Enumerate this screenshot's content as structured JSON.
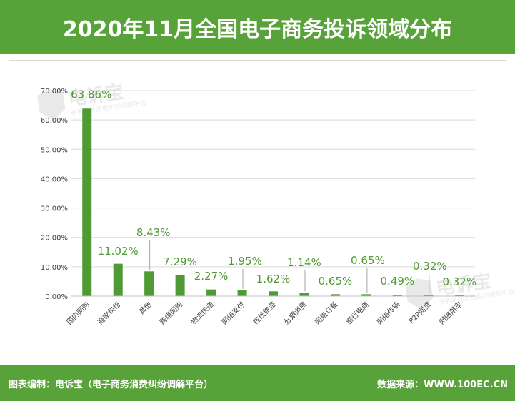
{
  "header": {
    "title": "2020年11月全国电子商务投诉领域分布"
  },
  "footer": {
    "left": "图表编制：电诉宝（电子商务消费纠纷调解平台）",
    "right": "数据来源：WWW.100EC.CN"
  },
  "watermark": {
    "brand": "电诉宝",
    "subtitle": "电子商务消费纠纷调解平台"
  },
  "colors": {
    "header_bg": "#58a23a",
    "bar": "#4f9a34",
    "label": "#4f9a34",
    "grid": "#d9d9d9"
  },
  "chart_data": {
    "type": "bar",
    "categories": [
      "国内网购",
      "商家纠纷",
      "其他",
      "跨境网购",
      "物流快递",
      "网络支付",
      "在线旅游",
      "分期消费",
      "网络订餐",
      "银行电商",
      "网络传销",
      "P2P网贷",
      "网络用车"
    ],
    "values": [
      63.86,
      11.02,
      8.43,
      7.29,
      2.27,
      1.95,
      1.62,
      1.14,
      0.65,
      0.65,
      0.49,
      0.32,
      0.32
    ],
    "data_labels": [
      "63.86%",
      "11.02%",
      "8.43%",
      "7.29%",
      "2.27%",
      "1.95%",
      "1.62%",
      "1.14%",
      "0.65%",
      "0.65%",
      "0.49%",
      "0.32%",
      "0.32%"
    ],
    "yticks": [
      "0.00%",
      "10.00%",
      "20.00%",
      "30.00%",
      "40.00%",
      "50.00%",
      "60.00%",
      "70.00%"
    ],
    "ylim": [
      0,
      70
    ],
    "grid": true,
    "legend": "none"
  }
}
